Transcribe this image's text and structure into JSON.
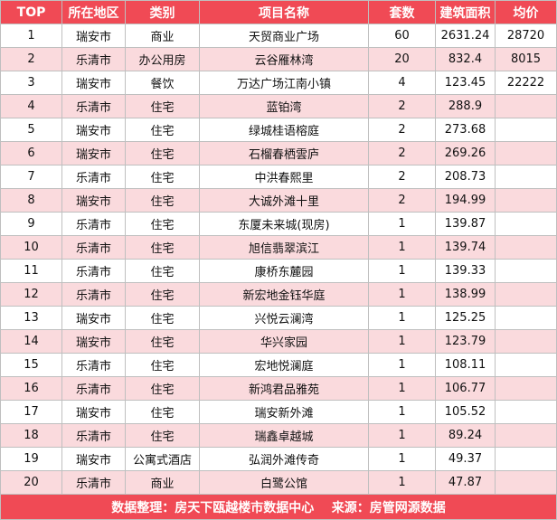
{
  "headers": [
    "TOP",
    "所在地区",
    "类别",
    "项目名称",
    "套数",
    "建筑面积",
    "均价"
  ],
  "rows": [
    [
      "1",
      "瑞安市",
      "商业",
      "天贸商业广场",
      "60",
      "2631.24",
      "28720"
    ],
    [
      "2",
      "乐清市",
      "办公用房",
      "云谷雁林湾",
      "20",
      "832.4",
      "8015"
    ],
    [
      "3",
      "瑞安市",
      "餐饮",
      "万达广场江南小镇",
      "4",
      "123.45",
      "22222"
    ],
    [
      "4",
      "乐清市",
      "住宅",
      "蓝铂湾",
      "2",
      "288.9",
      ""
    ],
    [
      "5",
      "瑞安市",
      "住宅",
      "绿城桂语榕庭",
      "2",
      "273.68",
      ""
    ],
    [
      "6",
      "瑞安市",
      "住宅",
      "石榴春栖雲庐",
      "2",
      "269.26",
      ""
    ],
    [
      "7",
      "乐清市",
      "住宅",
      "中洪春熙里",
      "2",
      "208.73",
      ""
    ],
    [
      "8",
      "瑞安市",
      "住宅",
      "大诚外滩十里",
      "2",
      "194.99",
      ""
    ],
    [
      "9",
      "乐清市",
      "住宅",
      "东厦未来城(现房)",
      "1",
      "139.87",
      ""
    ],
    [
      "10",
      "乐清市",
      "住宅",
      "旭信翡翠滨江",
      "1",
      "139.74",
      ""
    ],
    [
      "11",
      "乐清市",
      "住宅",
      "康桥东麓园",
      "1",
      "139.33",
      ""
    ],
    [
      "12",
      "乐清市",
      "住宅",
      "新宏地金钰华庭",
      "1",
      "138.99",
      ""
    ],
    [
      "13",
      "瑞安市",
      "住宅",
      "兴悦云澜湾",
      "1",
      "125.25",
      ""
    ],
    [
      "14",
      "瑞安市",
      "住宅",
      "华兴家园",
      "1",
      "123.79",
      ""
    ],
    [
      "15",
      "乐清市",
      "住宅",
      "宏地悦澜庭",
      "1",
      "108.11",
      ""
    ],
    [
      "16",
      "乐清市",
      "住宅",
      "新鸿君品雅苑",
      "1",
      "106.77",
      ""
    ],
    [
      "17",
      "瑞安市",
      "住宅",
      "瑞安新外滩",
      "1",
      "105.52",
      ""
    ],
    [
      "18",
      "乐清市",
      "住宅",
      "瑞鑫卓越城",
      "1",
      "89.24",
      ""
    ],
    [
      "19",
      "瑞安市",
      "公寓式酒店",
      "弘润外滩传奇",
      "1",
      "49.37",
      ""
    ],
    [
      "20",
      "乐清市",
      "商业",
      "白鹭公馆",
      "1",
      "47.87",
      ""
    ]
  ],
  "footer": "数据整理：房天下瓯越楼市数据中心    来源：房管网源数据",
  "colors": {
    "header_bg": "#f04a55",
    "stripe_bg": "#fadadd",
    "border": "#bfbfbf"
  }
}
